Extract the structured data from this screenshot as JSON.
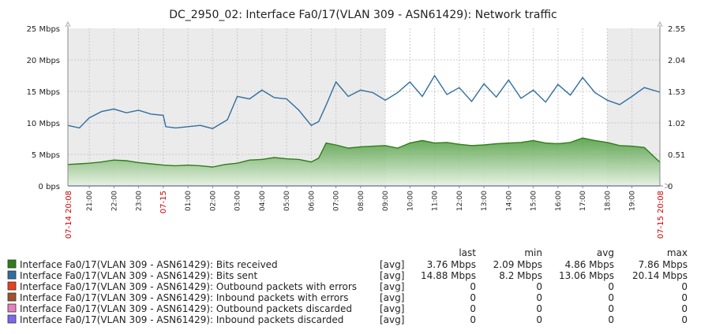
{
  "chart_data": {
    "type": "area",
    "title": "DC_2950_02: Interface Fa0/17(VLAN 309 - ASN61429): Network traffic",
    "y_left_ticks": [
      "0 bps",
      "5 Mbps",
      "10 Mbps",
      "15 Mbps",
      "20 Mbps",
      "25 Mbps"
    ],
    "y_right_ticks": [
      "0",
      "0.51",
      "1.02",
      "1.53",
      "2.04",
      "2.55"
    ],
    "ylim_left": [
      0,
      25
    ],
    "x_range_hours": [
      20.133,
      44.133
    ],
    "x_start_label": "07-14 20:08",
    "x_end_label": "07-15 20:08",
    "x_ticks": [
      {
        "hour": 21,
        "label": "21:00",
        "date": false
      },
      {
        "hour": 22,
        "label": "22:00",
        "date": false
      },
      {
        "hour": 23,
        "label": "23:00",
        "date": false
      },
      {
        "hour": 24,
        "label": "07-15",
        "date": true
      },
      {
        "hour": 25,
        "label": "01:00",
        "date": false
      },
      {
        "hour": 26,
        "label": "02:00",
        "date": false
      },
      {
        "hour": 27,
        "label": "03:00",
        "date": false
      },
      {
        "hour": 28,
        "label": "04:00",
        "date": false
      },
      {
        "hour": 29,
        "label": "05:00",
        "date": false
      },
      {
        "hour": 30,
        "label": "06:00",
        "date": false
      },
      {
        "hour": 31,
        "label": "07:00",
        "date": false
      },
      {
        "hour": 32,
        "label": "08:00",
        "date": false
      },
      {
        "hour": 33,
        "label": "09:00",
        "date": false
      },
      {
        "hour": 34,
        "label": "10:00",
        "date": false
      },
      {
        "hour": 35,
        "label": "11:00",
        "date": false
      },
      {
        "hour": 36,
        "label": "12:00",
        "date": false
      },
      {
        "hour": 37,
        "label": "13:00",
        "date": false
      },
      {
        "hour": 38,
        "label": "14:00",
        "date": false
      },
      {
        "hour": 39,
        "label": "15:00",
        "date": false
      },
      {
        "hour": 40,
        "label": "16:00",
        "date": false
      },
      {
        "hour": 41,
        "label": "17:00",
        "date": false
      },
      {
        "hour": 42,
        "label": "18:00",
        "date": false
      },
      {
        "hour": 43,
        "label": "19:00",
        "date": false
      }
    ],
    "grid": true,
    "shaded_periods_hours": [
      [
        20.133,
        33
      ],
      [
        42,
        44.133
      ]
    ],
    "series": [
      {
        "name": "Bits received",
        "color": "#2f7d1a",
        "fill": true,
        "x": [
          20.13,
          20.6,
          21.0,
          21.5,
          22.0,
          22.5,
          23.0,
          23.5,
          24.0,
          24.5,
          25.0,
          25.5,
          26.0,
          26.5,
          27.0,
          27.5,
          28.0,
          28.5,
          29.0,
          29.5,
          30.0,
          30.3,
          30.6,
          31.0,
          31.5,
          32.0,
          32.5,
          33.0,
          33.5,
          34.0,
          34.5,
          35.0,
          35.5,
          36.0,
          36.5,
          37.0,
          37.5,
          38.0,
          38.5,
          39.0,
          39.5,
          40.0,
          40.5,
          41.0,
          41.5,
          42.0,
          42.5,
          43.0,
          43.5,
          44.13
        ],
        "y": [
          3.4,
          3.5,
          3.6,
          3.8,
          4.1,
          4.0,
          3.7,
          3.5,
          3.3,
          3.2,
          3.3,
          3.2,
          3.0,
          3.4,
          3.6,
          4.1,
          4.2,
          4.5,
          4.3,
          4.2,
          3.8,
          4.4,
          6.8,
          6.5,
          6.0,
          6.2,
          6.3,
          6.4,
          6.0,
          6.8,
          7.2,
          6.8,
          6.9,
          6.6,
          6.4,
          6.5,
          6.7,
          6.8,
          6.9,
          7.2,
          6.8,
          6.7,
          6.9,
          7.6,
          7.2,
          6.9,
          6.4,
          6.3,
          6.1,
          3.76
        ]
      },
      {
        "name": "Bits sent",
        "color": "#2f6f9f",
        "fill": false,
        "x": [
          20.13,
          20.6,
          21.0,
          21.5,
          22.0,
          22.5,
          23.0,
          23.5,
          24.0,
          24.1,
          24.5,
          25.0,
          25.5,
          26.0,
          26.3,
          26.6,
          27.0,
          27.5,
          28.0,
          28.5,
          29.0,
          29.5,
          30.0,
          30.3,
          30.6,
          31.0,
          31.5,
          32.0,
          32.5,
          33.0,
          33.5,
          34.0,
          34.5,
          35.0,
          35.5,
          36.0,
          36.5,
          37.0,
          37.5,
          38.0,
          38.5,
          39.0,
          39.5,
          40.0,
          40.5,
          41.0,
          41.5,
          42.0,
          42.5,
          43.0,
          43.5,
          44.13
        ],
        "y": [
          9.6,
          9.2,
          10.8,
          11.8,
          12.2,
          11.6,
          12.0,
          11.4,
          11.2,
          9.4,
          9.2,
          9.4,
          9.6,
          9.1,
          9.8,
          10.5,
          14.2,
          13.8,
          15.2,
          14.0,
          13.8,
          12.0,
          9.6,
          10.2,
          12.8,
          16.5,
          14.2,
          15.2,
          14.8,
          13.6,
          14.8,
          16.5,
          14.2,
          17.5,
          14.5,
          15.6,
          13.4,
          16.2,
          14.1,
          16.8,
          13.9,
          15.2,
          13.3,
          16.1,
          14.4,
          17.2,
          14.8,
          13.6,
          12.9,
          14.2,
          15.6,
          14.88
        ]
      }
    ],
    "legend": {
      "headers": {
        "last": "last",
        "min": "min",
        "avg": "avg",
        "max": "max"
      },
      "rows": [
        {
          "color": "#2f7d1a",
          "name": "Interface Fa0/17(VLAN 309 - ASN61429): Bits received",
          "func": "[avg]",
          "last": "3.76 Mbps",
          "min": "2.09 Mbps",
          "avg": "4.86 Mbps",
          "max": "7.86 Mbps"
        },
        {
          "color": "#2f6f9f",
          "name": "Interface Fa0/17(VLAN 309 - ASN61429): Bits sent",
          "func": "[avg]",
          "last": "14.88 Mbps",
          "min": "8.2 Mbps",
          "avg": "13.06 Mbps",
          "max": "20.14 Mbps"
        },
        {
          "color": "#e8411b",
          "name": "Interface Fa0/17(VLAN 309 - ASN61429): Outbound packets with errors",
          "func": "[avg]",
          "last": "0",
          "min": "0",
          "avg": "0",
          "max": "0"
        },
        {
          "color": "#a0522d",
          "name": "Interface Fa0/17(VLAN 309 - ASN61429): Inbound packets with errors",
          "func": "[avg]",
          "last": "0",
          "min": "0",
          "avg": "0",
          "max": "0"
        },
        {
          "color": "#e87fc0",
          "name": "Interface Fa0/17(VLAN 309 - ASN61429): Outbound packets discarded",
          "func": "[avg]",
          "last": "0",
          "min": "0",
          "avg": "0",
          "max": "0"
        },
        {
          "color": "#7b68ee",
          "name": "Interface Fa0/17(VLAN 309 - ASN61429): Inbound packets discarded",
          "func": "[avg]",
          "last": "0",
          "min": "0",
          "avg": "0",
          "max": "0"
        }
      ]
    }
  }
}
